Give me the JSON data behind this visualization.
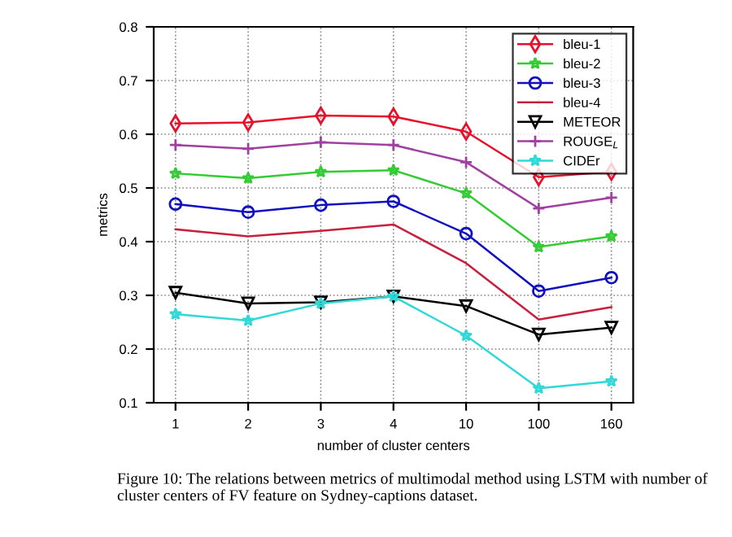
{
  "chart_data": {
    "type": "line",
    "xlabel": "number of cluster centers",
    "ylabel": "metrics",
    "categories": [
      "1",
      "2",
      "3",
      "4",
      "10",
      "100",
      "160"
    ],
    "ylim": [
      0.1,
      0.8
    ],
    "yticks": [
      0.1,
      0.2,
      0.3,
      0.4,
      0.5,
      0.6,
      0.7,
      0.8
    ],
    "grid": true,
    "legend": "top right",
    "series": [
      {
        "name": "bleu-1",
        "color": "#e8102a",
        "marker": "diamond",
        "values": [
          0.62,
          0.622,
          0.635,
          0.633,
          0.605,
          0.52,
          0.53
        ]
      },
      {
        "name": "bleu-2",
        "color": "#33cc33",
        "marker": "star",
        "values": [
          0.527,
          0.518,
          0.53,
          0.533,
          0.49,
          0.39,
          0.41
        ]
      },
      {
        "name": "bleu-3",
        "color": "#1010c0",
        "marker": "circle",
        "values": [
          0.47,
          0.455,
          0.468,
          0.475,
          0.415,
          0.308,
          0.333
        ]
      },
      {
        "name": "bleu-4",
        "color": "#c8203c",
        "marker": "none",
        "values": [
          0.423,
          0.41,
          0.42,
          0.432,
          0.36,
          0.255,
          0.278
        ]
      },
      {
        "name": "METEOR",
        "color": "#000000",
        "marker": "triangle",
        "values": [
          0.305,
          0.285,
          0.287,
          0.298,
          0.28,
          0.227,
          0.24
        ]
      },
      {
        "name": "ROUGE$_{L}$",
        "color": "#a040a0",
        "marker": "cross",
        "values": [
          0.58,
          0.573,
          0.585,
          0.58,
          0.548,
          0.462,
          0.482
        ]
      },
      {
        "name": "CIDEr",
        "color": "#30d8d8",
        "marker": "star",
        "values": [
          0.265,
          0.253,
          0.285,
          0.298,
          0.225,
          0.127,
          0.14
        ]
      }
    ],
    "annotations": [
      "Figure 10: The relations between metrics of multimodal method using LSTM with number of cluster centers of FV feature on Sydney-captions dataset."
    ]
  }
}
